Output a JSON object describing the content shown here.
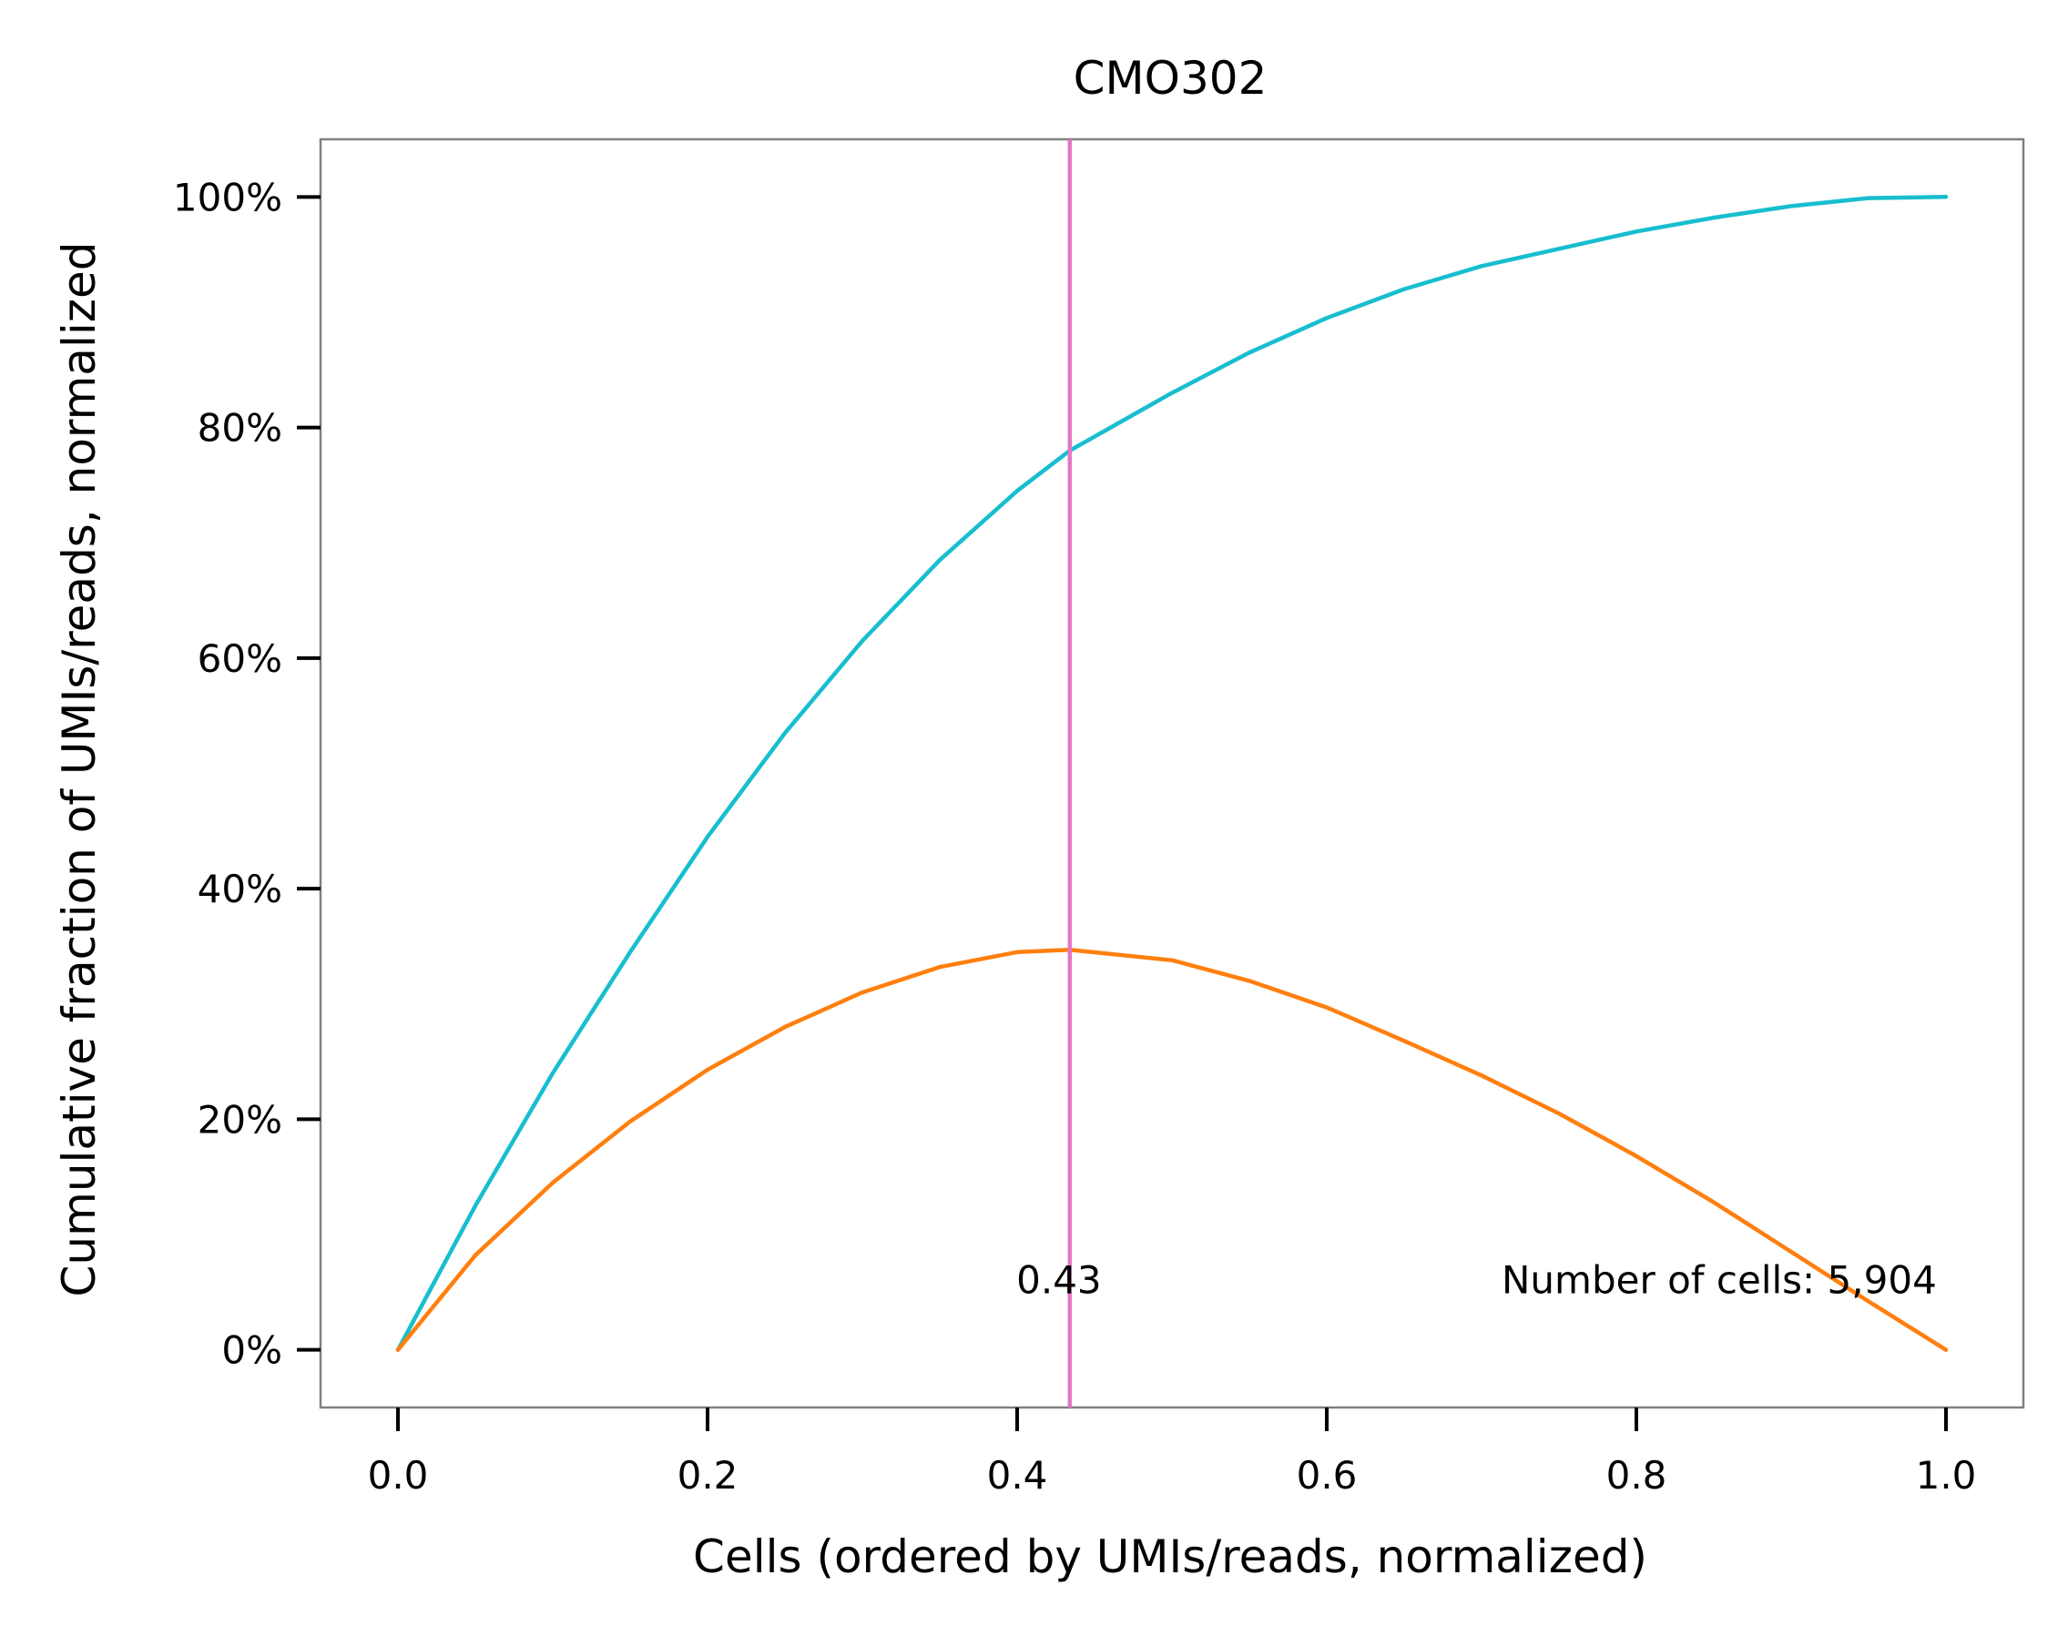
{
  "chart_data": {
    "type": "line",
    "title": "CMO302",
    "xlabel": "Cells (ordered by UMIs/reads, normalized)",
    "ylabel": "Cumulative fraction of UMIs/reads, normalized",
    "xlim": [
      -0.05,
      1.05
    ],
    "ylim": [
      -0.05,
      1.05
    ],
    "grid": false,
    "legend": "none",
    "x_ticks": [
      {
        "value": 0.0,
        "label": "0.0"
      },
      {
        "value": 0.2,
        "label": "0.2"
      },
      {
        "value": 0.4,
        "label": "0.4"
      },
      {
        "value": 0.6,
        "label": "0.6"
      },
      {
        "value": 0.8,
        "label": "0.8"
      },
      {
        "value": 1.0,
        "label": "1.0"
      }
    ],
    "y_ticks": [
      {
        "value": 0.0,
        "label": "0%"
      },
      {
        "value": 0.2,
        "label": "20%"
      },
      {
        "value": 0.4,
        "label": "40%"
      },
      {
        "value": 0.6,
        "label": "60%"
      },
      {
        "value": 0.8,
        "label": "80%"
      },
      {
        "value": 1.0,
        "label": "100%"
      }
    ],
    "series": [
      {
        "color": "#17becf",
        "x": [
          0.0,
          0.05,
          0.1,
          0.15,
          0.2,
          0.25,
          0.3,
          0.35,
          0.4,
          0.434,
          0.5,
          0.55,
          0.6,
          0.65,
          0.7,
          0.75,
          0.8,
          0.85,
          0.9,
          0.95,
          1.0
        ],
        "y": [
          0.0,
          0.125,
          0.24,
          0.345,
          0.445,
          0.535,
          0.615,
          0.685,
          0.745,
          0.78,
          0.83,
          0.865,
          0.895,
          0.92,
          0.94,
          0.955,
          0.97,
          0.982,
          0.992,
          0.999,
          1.0
        ]
      },
      {
        "color": "#ff7f0e",
        "x": [
          0.0,
          0.05,
          0.1,
          0.15,
          0.2,
          0.25,
          0.3,
          0.35,
          0.4,
          0.434,
          0.5,
          0.55,
          0.6,
          0.65,
          0.7,
          0.75,
          0.8,
          0.85,
          0.9,
          0.95,
          1.0
        ],
        "y": [
          0.0,
          0.082,
          0.145,
          0.198,
          0.243,
          0.28,
          0.31,
          0.332,
          0.345,
          0.347,
          0.338,
          0.32,
          0.297,
          0.268,
          0.238,
          0.205,
          0.168,
          0.128,
          0.085,
          0.042,
          0.0
        ]
      }
    ],
    "vline": {
      "x": 0.434,
      "color": "#e377c2"
    },
    "annotations": [
      {
        "text": "0.43",
        "x": 0.427,
        "y": 0.06,
        "anchor": "middle"
      },
      {
        "text": "Number of cells: 5,904",
        "x": 0.994,
        "y": 0.06,
        "anchor": "end"
      }
    ]
  }
}
